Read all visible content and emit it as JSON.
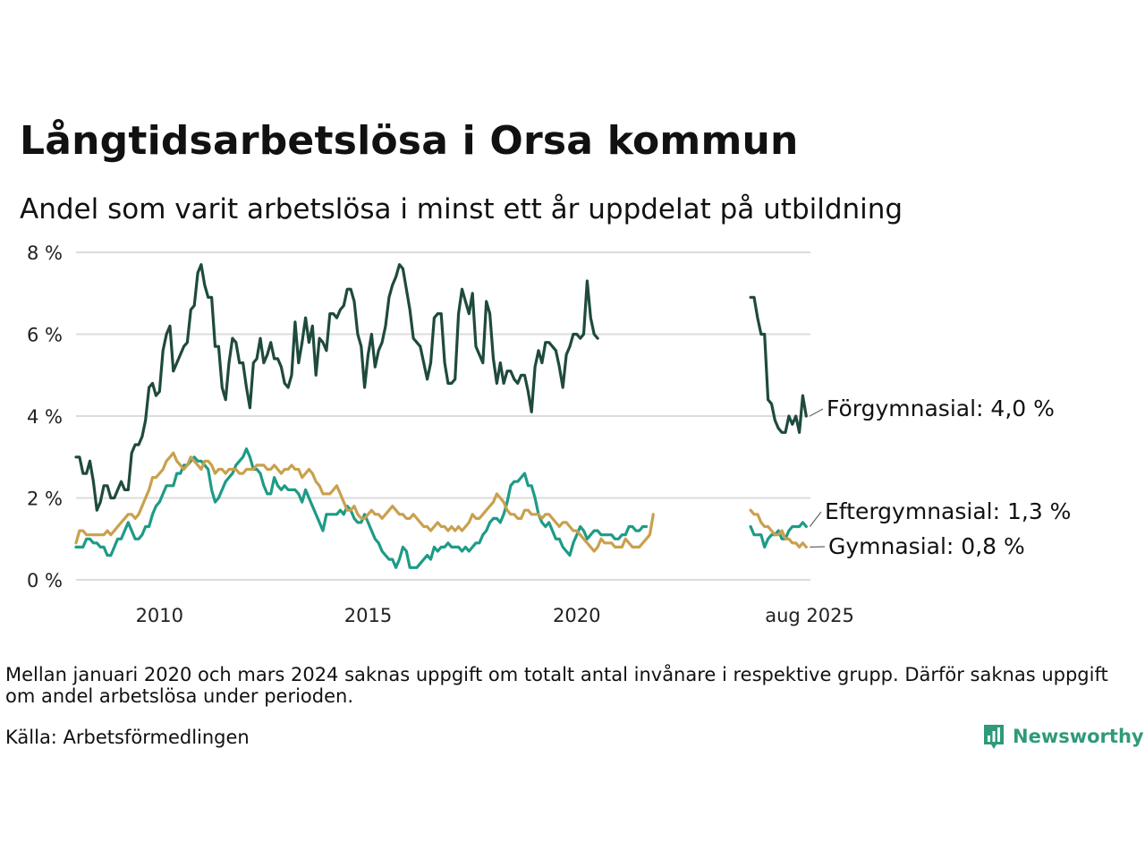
{
  "chart_data": {
    "type": "line",
    "title": "Långtidsarbetslösa i Orsa kommun",
    "subtitle": "Andel som varit arbetslösa i minst ett år uppdelat på utbildning",
    "y_ticks": [
      "0 %",
      "2 %",
      "4 %",
      "6 %",
      "8 %"
    ],
    "x_ticks": [
      "2010",
      "2015",
      "2020",
      "aug 2025"
    ],
    "ylim": [
      0,
      8
    ],
    "grid": true,
    "missing_period": [
      "2020-01",
      "2024-03"
    ],
    "series": [
      {
        "name": "Förgymnasial",
        "end_label": "Förgymnasial: 4,0 %",
        "color": "#1f4a3e",
        "segments": [
          {
            "start": "2008-01",
            "values": [
              3.0,
              3.0,
              2.6,
              2.6,
              2.9,
              2.4,
              1.7,
              1.9,
              2.3,
              2.3,
              2.0,
              2.0,
              2.2,
              2.4,
              2.2,
              2.2,
              3.1,
              3.3,
              3.3,
              3.5,
              3.9,
              4.7,
              4.8,
              4.5,
              4.6,
              5.6,
              6.0,
              6.2,
              5.1,
              5.3,
              5.5,
              5.7,
              5.8,
              6.6,
              6.7,
              7.5,
              7.7,
              7.2,
              6.9,
              6.9,
              5.7,
              5.7,
              4.7,
              4.4,
              5.3,
              5.9,
              5.8,
              5.3,
              5.3,
              4.7,
              4.2,
              5.3,
              5.4,
              5.9,
              5.3,
              5.5,
              5.8,
              5.4,
              5.4,
              5.2,
              4.8,
              4.7,
              5.0,
              6.3,
              5.3,
              5.8,
              6.4,
              5.8,
              6.2,
              5.0,
              5.9,
              5.8,
              5.6,
              6.5,
              6.5,
              6.4,
              6.6,
              6.7,
              7.1,
              7.1,
              6.8,
              6.0,
              5.7,
              4.7,
              5.5,
              6.0,
              5.2,
              5.6,
              5.8,
              6.2,
              6.9,
              7.2,
              7.4,
              7.7,
              7.6,
              7.1,
              6.6,
              5.9,
              5.8,
              5.7,
              5.3,
              4.9,
              5.3,
              6.4,
              6.5,
              6.5,
              5.3,
              4.8,
              4.8,
              4.9,
              6.5,
              7.1,
              6.8,
              6.5,
              7.0,
              5.7,
              5.5,
              5.3,
              6.8,
              6.5,
              5.4,
              4.8,
              5.3,
              4.8,
              5.1,
              5.1,
              4.9,
              4.8,
              5.0,
              5.0,
              4.6,
              4.1,
              5.2,
              5.6,
              5.3,
              5.8,
              5.8,
              5.7,
              5.6,
              5.2,
              4.7,
              5.5,
              5.7,
              6.0,
              6.0,
              5.9,
              6.0,
              7.3,
              6.4,
              6.0,
              5.9
            ]
          },
          {
            "start": "2024-03",
            "values": [
              6.9,
              6.9,
              6.4,
              6.0,
              6.0,
              4.4,
              4.3,
              3.9,
              3.7,
              3.6,
              3.6,
              4.0,
              3.8,
              4.0,
              3.6,
              4.5,
              4.0
            ]
          }
        ]
      },
      {
        "name": "Eftergymnasial",
        "end_label": "Eftergymnasial: 1,3 %",
        "color": "#1e9b86",
        "segments": [
          {
            "start": "2008-01",
            "values": [
              0.8,
              0.8,
              0.8,
              1.0,
              1.0,
              0.9,
              0.9,
              0.8,
              0.8,
              0.6,
              0.6,
              0.8,
              1.0,
              1.0,
              1.2,
              1.4,
              1.2,
              1.0,
              1.0,
              1.1,
              1.3,
              1.3,
              1.6,
              1.8,
              1.9,
              2.1,
              2.3,
              2.3,
              2.3,
              2.6,
              2.6,
              2.8,
              2.8,
              2.9,
              3.0,
              2.9,
              2.9,
              2.8,
              2.7,
              2.2,
              1.9,
              2.0,
              2.2,
              2.4,
              2.5,
              2.6,
              2.8,
              2.9,
              3.0,
              3.2,
              3.0,
              2.7,
              2.7,
              2.6,
              2.3,
              2.1,
              2.1,
              2.5,
              2.3,
              2.2,
              2.3,
              2.2,
              2.2,
              2.2,
              2.1,
              1.9,
              2.2,
              2.0,
              1.8,
              1.6,
              1.4,
              1.2,
              1.6,
              1.6,
              1.6,
              1.6,
              1.7,
              1.6,
              1.8,
              1.7,
              1.5,
              1.4,
              1.4,
              1.6,
              1.4,
              1.2,
              1.0,
              0.9,
              0.7,
              0.6,
              0.5,
              0.5,
              0.3,
              0.5,
              0.8,
              0.7,
              0.3,
              0.3,
              0.3,
              0.4,
              0.5,
              0.6,
              0.5,
              0.8,
              0.7,
              0.8,
              0.8,
              0.9,
              0.8,
              0.8,
              0.8,
              0.7,
              0.8,
              0.7,
              0.8,
              0.9,
              0.9,
              1.1,
              1.2,
              1.4,
              1.5,
              1.5,
              1.4,
              1.6,
              1.9,
              2.3,
              2.4,
              2.4,
              2.5,
              2.6,
              2.3,
              2.3,
              2.0,
              1.6,
              1.4,
              1.3,
              1.4,
              1.2,
              1.0,
              1.0,
              0.8,
              0.7,
              0.6,
              0.9,
              1.1,
              1.3,
              1.2,
              1.0,
              1.1,
              1.2,
              1.2,
              1.1,
              1.1,
              1.1,
              1.1,
              1.0,
              1.0,
              1.1,
              1.1,
              1.3,
              1.3,
              1.2,
              1.2,
              1.3,
              1.3
            ]
          },
          {
            "start": "2024-03",
            "values": [
              1.3,
              1.1,
              1.1,
              1.1,
              0.8,
              1.0,
              1.1,
              1.1,
              1.2,
              1.0,
              1.0,
              1.2,
              1.3,
              1.3,
              1.3,
              1.4,
              1.3
            ]
          }
        ]
      },
      {
        "name": "Gymnasial",
        "end_label": "Gymnasial: 0,8 %",
        "color": "#c9a04e",
        "segments": [
          {
            "start": "2008-01",
            "values": [
              0.9,
              1.2,
              1.2,
              1.1,
              1.1,
              1.1,
              1.1,
              1.1,
              1.1,
              1.2,
              1.1,
              1.2,
              1.3,
              1.4,
              1.5,
              1.6,
              1.6,
              1.5,
              1.6,
              1.8,
              2.0,
              2.2,
              2.5,
              2.5,
              2.6,
              2.7,
              2.9,
              3.0,
              3.1,
              2.9,
              2.8,
              2.7,
              2.8,
              3.0,
              2.9,
              2.8,
              2.7,
              2.9,
              2.9,
              2.8,
              2.6,
              2.7,
              2.7,
              2.6,
              2.7,
              2.7,
              2.7,
              2.6,
              2.6,
              2.7,
              2.7,
              2.7,
              2.8,
              2.8,
              2.8,
              2.7,
              2.7,
              2.8,
              2.7,
              2.6,
              2.7,
              2.7,
              2.8,
              2.7,
              2.7,
              2.5,
              2.6,
              2.7,
              2.6,
              2.4,
              2.3,
              2.1,
              2.1,
              2.1,
              2.2,
              2.3,
              2.1,
              1.9,
              1.7,
              1.7,
              1.8,
              1.6,
              1.5,
              1.5,
              1.6,
              1.7,
              1.6,
              1.6,
              1.5,
              1.6,
              1.7,
              1.8,
              1.7,
              1.6,
              1.6,
              1.5,
              1.5,
              1.6,
              1.5,
              1.4,
              1.3,
              1.3,
              1.2,
              1.3,
              1.4,
              1.3,
              1.3,
              1.2,
              1.3,
              1.2,
              1.3,
              1.2,
              1.3,
              1.4,
              1.6,
              1.5,
              1.5,
              1.6,
              1.7,
              1.8,
              1.9,
              2.1,
              2.0,
              1.9,
              1.7,
              1.6,
              1.6,
              1.5,
              1.5,
              1.7,
              1.7,
              1.6,
              1.6,
              1.6,
              1.5,
              1.6,
              1.6,
              1.5,
              1.4,
              1.3,
              1.4,
              1.4,
              1.3,
              1.2,
              1.2,
              1.1,
              1.0,
              0.9,
              0.8,
              0.7,
              0.8,
              1.0,
              0.9,
              0.9,
              0.9,
              0.8,
              0.8,
              0.8,
              1.0,
              0.9,
              0.8,
              0.8,
              0.8,
              0.9,
              1.0,
              1.1,
              1.6
            ]
          },
          {
            "start": "2024-03",
            "values": [
              1.7,
              1.6,
              1.6,
              1.4,
              1.3,
              1.3,
              1.2,
              1.1,
              1.1,
              1.2,
              1.0,
              1.0,
              0.9,
              0.9,
              0.8,
              0.9,
              0.8
            ]
          }
        ]
      }
    ]
  },
  "footer": {
    "note": "Mellan januari 2020 och mars 2024 saknas uppgift om totalt antal invånare i respektive grupp. Därför saknas uppgift om andel arbetslösa under perioden.",
    "source": "Källa: Arbetsförmedlingen",
    "logo": "Newsworthy",
    "logo_icon": "bar-chart-icon",
    "logo_color": "#2f9a7a"
  }
}
